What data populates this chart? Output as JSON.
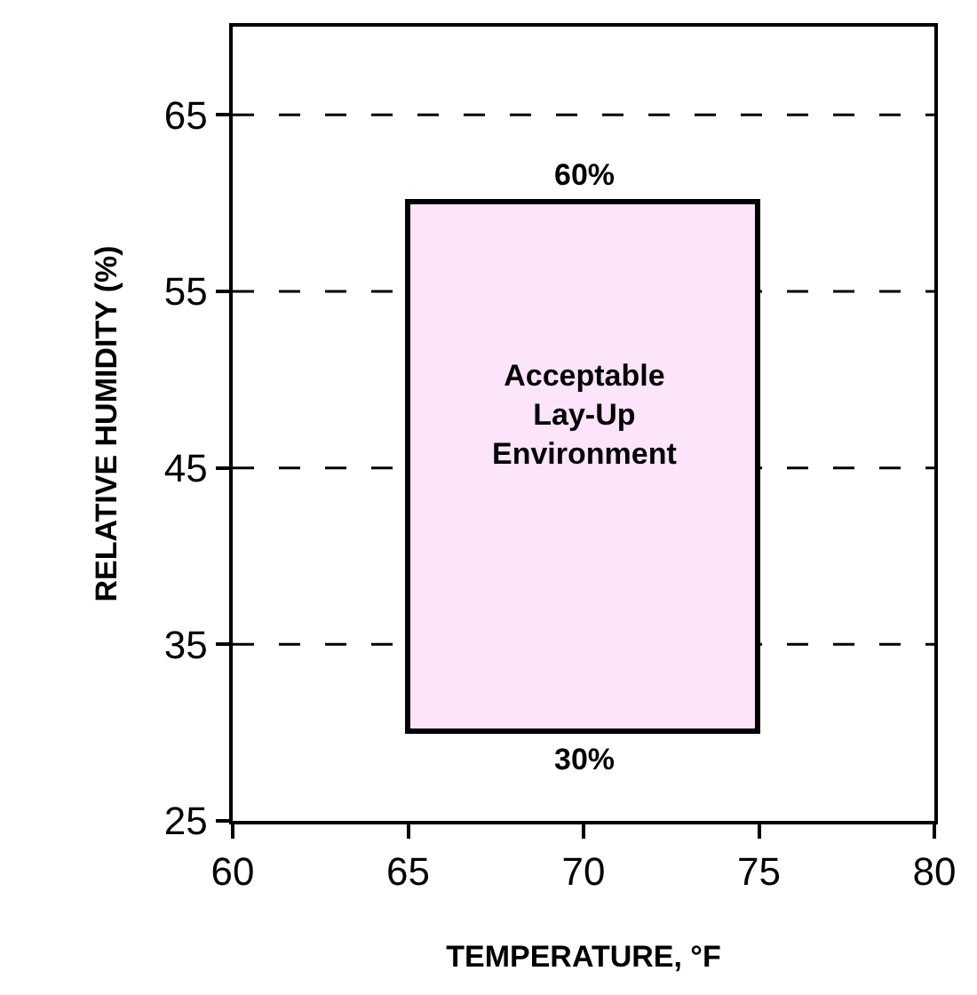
{
  "chart_data": {
    "type": "bar",
    "xlabel": "TEMPERATURE, °F",
    "ylabel": "RELATIVE HUMIDITY (%)",
    "x": [
      70
    ],
    "base": [
      30
    ],
    "values": [
      30
    ],
    "color": "#fce4fa",
    "annotations": [
      {
        "text": "60%",
        "x": 70,
        "y": 60
      },
      {
        "text": "30%",
        "x": 70,
        "y": 30
      },
      "Acceptable\nLay-Up\nEnvironment"
    ],
    "xlim": [
      60,
      80
    ],
    "xticks": [
      60,
      65,
      70,
      75,
      80
    ],
    "ylim": [
      25,
      70
    ],
    "yticks": [
      25,
      35,
      45,
      55,
      65
    ],
    "grid": "y"
  }
}
